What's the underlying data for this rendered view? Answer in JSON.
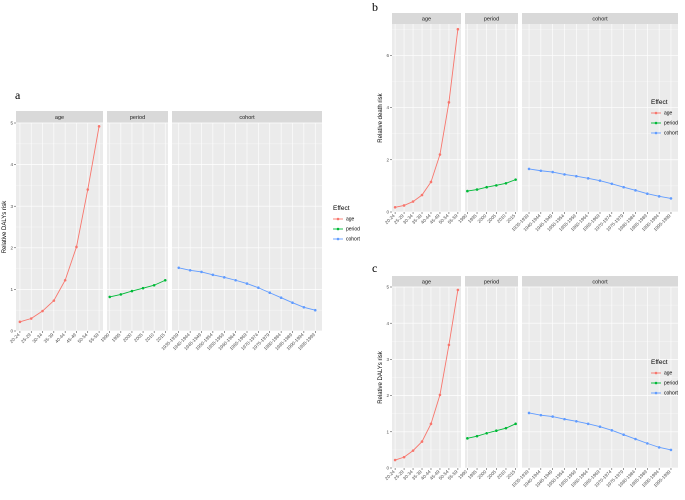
{
  "figure": {
    "background_panel": "#ebebeb",
    "strip_fill": "#d9d9d9",
    "grid_color": "#ffffff",
    "panel_letters": [
      "a",
      "b",
      "c"
    ]
  },
  "chart_data": [
    {
      "type": "line",
      "panel": "a",
      "ylabel": "Relative DALYs risk",
      "ylim": [
        0,
        5
      ],
      "yticks": [
        0,
        1,
        2,
        3,
        4,
        5
      ],
      "facets": [
        {
          "strip": "age",
          "categories": [
            "20-24",
            "25-29",
            "30-34",
            "35-39",
            "40-44",
            "45-49",
            "50-54",
            "55-59"
          ],
          "series": [
            {
              "name": "age",
              "values": [
                0.22,
                0.3,
                0.48,
                0.73,
                1.22,
                2.02,
                3.4,
                4.92
              ]
            }
          ]
        },
        {
          "strip": "period",
          "categories": [
            "1990",
            "1995",
            "2000",
            "2005",
            "2010",
            "2015"
          ],
          "series": [
            {
              "name": "period",
              "values": [
                0.82,
                0.88,
                0.96,
                1.03,
                1.1,
                1.22
              ]
            }
          ]
        },
        {
          "strip": "cohort",
          "categories": [
            "1935-1939",
            "1940-1944",
            "1945-1949",
            "1950-1954",
            "1955-1959",
            "1960-1964",
            "1965-1969",
            "1970-1974",
            "1975-1979",
            "1980-1984",
            "1985-1989",
            "1990-1994",
            "1995-1999"
          ],
          "series": [
            {
              "name": "cohort",
              "values": [
                1.52,
                1.46,
                1.42,
                1.35,
                1.29,
                1.22,
                1.14,
                1.04,
                0.92,
                0.8,
                0.68,
                0.57,
                0.5
              ]
            }
          ]
        }
      ],
      "legend": {
        "title": "Effect",
        "entries": [
          "age",
          "period",
          "cohort"
        ],
        "placement": "right"
      }
    },
    {
      "type": "line",
      "panel": "b",
      "ylabel": "Relative death risk",
      "ylim": [
        0,
        7.2
      ],
      "yticks": [
        0,
        2,
        4,
        6
      ],
      "facets": [
        {
          "strip": "age",
          "categories": [
            "20-24",
            "25-29",
            "30-34",
            "35-39",
            "40-44",
            "45-49",
            "50-54",
            "55-59"
          ],
          "series": [
            {
              "name": "age",
              "values": [
                0.18,
                0.25,
                0.4,
                0.65,
                1.15,
                2.2,
                4.2,
                7.0
              ]
            }
          ]
        },
        {
          "strip": "period",
          "categories": [
            "1990",
            "1995",
            "2000",
            "2005",
            "2010",
            "2015"
          ],
          "series": [
            {
              "name": "period",
              "values": [
                0.8,
                0.86,
                0.95,
                1.02,
                1.1,
                1.24
              ]
            }
          ]
        },
        {
          "strip": "cohort",
          "categories": [
            "1935-1939",
            "1940-1944",
            "1945-1949",
            "1950-1954",
            "1955-1959",
            "1960-1964",
            "1965-1969",
            "1970-1974",
            "1975-1979",
            "1980-1984",
            "1985-1989",
            "1990-1994",
            "1995-1999"
          ],
          "series": [
            {
              "name": "cohort",
              "values": [
                1.65,
                1.58,
                1.53,
                1.44,
                1.37,
                1.29,
                1.2,
                1.08,
                0.95,
                0.83,
                0.7,
                0.6,
                0.52
              ]
            }
          ]
        }
      ],
      "legend": {
        "title": "Effect",
        "entries": [
          "age",
          "period",
          "cohort"
        ],
        "placement": "right"
      }
    },
    {
      "type": "line",
      "panel": "c",
      "ylabel": "Relative DALYs risk",
      "ylim": [
        0,
        5
      ],
      "yticks": [
        0,
        1,
        2,
        3,
        4,
        5
      ],
      "facets": [
        {
          "strip": "age",
          "categories": [
            "20-24",
            "25-29",
            "30-34",
            "35-39",
            "40-44",
            "45-49",
            "50-54",
            "55-59"
          ],
          "series": [
            {
              "name": "age",
              "values": [
                0.22,
                0.3,
                0.48,
                0.73,
                1.22,
                2.02,
                3.4,
                4.92
              ]
            }
          ]
        },
        {
          "strip": "period",
          "categories": [
            "1990",
            "1995",
            "2000",
            "2005",
            "2010",
            "2015"
          ],
          "series": [
            {
              "name": "period",
              "values": [
                0.82,
                0.88,
                0.96,
                1.03,
                1.1,
                1.22
              ]
            }
          ]
        },
        {
          "strip": "cohort",
          "categories": [
            "1935-1939",
            "1940-1944",
            "1945-1949",
            "1950-1954",
            "1955-1959",
            "1960-1964",
            "1965-1969",
            "1970-1974",
            "1975-1979",
            "1980-1984",
            "1985-1989",
            "1990-1994",
            "1995-1999"
          ],
          "series": [
            {
              "name": "cohort",
              "values": [
                1.52,
                1.46,
                1.42,
                1.35,
                1.29,
                1.22,
                1.14,
                1.04,
                0.92,
                0.8,
                0.68,
                0.57,
                0.5
              ]
            }
          ]
        }
      ],
      "legend": {
        "title": "Effect",
        "entries": [
          "age",
          "period",
          "cohort"
        ],
        "placement": "right"
      }
    }
  ],
  "colors": {
    "age": "#f8766d",
    "period": "#00ba38",
    "cohort": "#619cff"
  }
}
